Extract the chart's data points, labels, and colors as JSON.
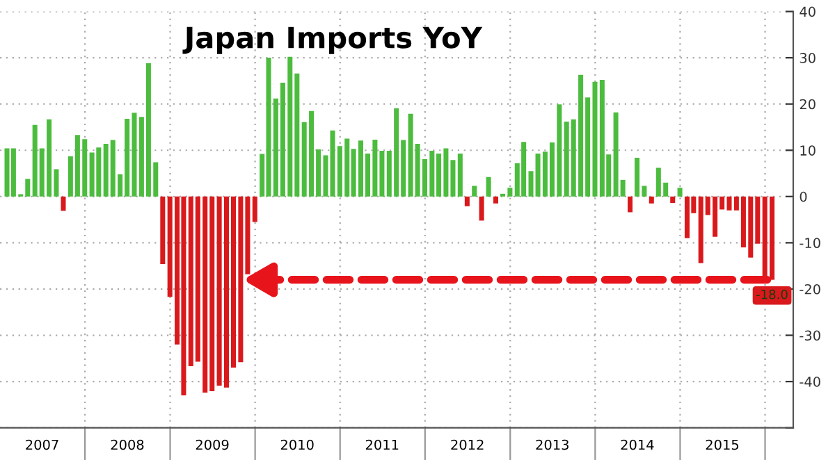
{
  "chart_data": {
    "type": "bar",
    "title": "Japan Imports YoY",
    "x": [
      "2007-01-31",
      "2007-02-28",
      "2007-03-31",
      "2007-04-30",
      "2007-05-31",
      "2007-06-30",
      "2007-07-31",
      "2007-08-31",
      "2007-09-30",
      "2007-10-31",
      "2007-11-30",
      "2007-12-31",
      "2008-01-31",
      "2008-02-29",
      "2008-03-31",
      "2008-04-30",
      "2008-05-31",
      "2008-06-30",
      "2008-07-31",
      "2008-08-31",
      "2008-09-30",
      "2008-10-31",
      "2008-11-30",
      "2008-12-31",
      "2009-01-31",
      "2009-02-28",
      "2009-03-31",
      "2009-04-30",
      "2009-05-31",
      "2009-06-30",
      "2009-07-31",
      "2009-08-31",
      "2009-09-30",
      "2009-10-31",
      "2009-11-30",
      "2009-12-31",
      "2010-01-31",
      "2010-02-28",
      "2010-03-31",
      "2010-04-30",
      "2010-05-31",
      "2010-06-30",
      "2010-07-31",
      "2010-08-31",
      "2010-09-30",
      "2010-10-31",
      "2010-11-30",
      "2010-12-31",
      "2011-01-31",
      "2011-02-28",
      "2011-03-31",
      "2011-04-30",
      "2011-05-31",
      "2011-06-30",
      "2011-07-31",
      "2011-08-31",
      "2011-09-30",
      "2011-10-31",
      "2011-11-30",
      "2011-12-31",
      "2012-01-31",
      "2012-02-29",
      "2012-03-31",
      "2012-04-30",
      "2012-05-31",
      "2012-06-30",
      "2012-07-31",
      "2012-08-31",
      "2012-09-30",
      "2012-10-31",
      "2012-11-30",
      "2012-12-31",
      "2013-01-31",
      "2013-02-28",
      "2013-03-31",
      "2013-04-30",
      "2013-05-31",
      "2013-06-30",
      "2013-07-31",
      "2013-08-31",
      "2013-09-30",
      "2013-10-31",
      "2013-11-30",
      "2013-12-31",
      "2014-01-31",
      "2014-02-28",
      "2014-03-31",
      "2014-04-30",
      "2014-05-31",
      "2014-06-30",
      "2014-07-31",
      "2014-08-31",
      "2014-09-30",
      "2014-10-31",
      "2014-11-30",
      "2014-12-31",
      "2015-01-31",
      "2015-02-28",
      "2015-03-31",
      "2015-04-30",
      "2015-05-31",
      "2015-06-30",
      "2015-07-31",
      "2015-08-31",
      "2015-09-30",
      "2015-10-31",
      "2015-11-30",
      "2015-12-31",
      "2016-01-31"
    ],
    "values": [
      10.4,
      10.4,
      0.5,
      3.8,
      15.5,
      10.4,
      16.7,
      5.9,
      -3.1,
      8.7,
      13.3,
      12.4,
      9.5,
      10.6,
      11.4,
      12.2,
      4.8,
      16.8,
      18.1,
      17.2,
      28.8,
      7.4,
      -14.6,
      -21.7,
      -32.0,
      -43.0,
      -36.7,
      -35.7,
      -42.4,
      -42.1,
      -40.9,
      -41.3,
      -37.0,
      -35.8,
      -16.8,
      -5.5,
      9.2,
      30.0,
      21.2,
      24.6,
      30.2,
      26.6,
      16.1,
      18.5,
      10.2,
      8.9,
      14.3,
      10.9,
      12.5,
      10.3,
      12.1,
      9.3,
      12.3,
      9.9,
      9.9,
      19.1,
      12.2,
      17.9,
      11.4,
      8.1,
      9.9,
      9.3,
      10.4,
      7.9,
      9.3,
      -2.1,
      2.3,
      -5.2,
      4.2,
      -1.5,
      0.6,
      1.9,
      7.2,
      11.8,
      5.5,
      9.3,
      9.7,
      11.7,
      19.9,
      16.2,
      16.7,
      26.3,
      21.4,
      24.8,
      25.2,
      9.1,
      18.2,
      3.6,
      -3.4,
      8.4,
      2.3,
      -1.5,
      6.2,
      3.0,
      -1.4,
      1.9,
      -9.0,
      -3.6,
      -14.4,
      -4.0,
      -8.7,
      -2.8,
      -3.0,
      -3.0,
      -11.0,
      -13.2,
      -10.2,
      -18.0,
      -18.0
    ],
    "value_labels": [
      null,
      null,
      null,
      null,
      null,
      null,
      null,
      null,
      null,
      null,
      null,
      null,
      null,
      null,
      null,
      null,
      null,
      null,
      null,
      null,
      null,
      null,
      null,
      null,
      null,
      null,
      null,
      null,
      null,
      null,
      null,
      null,
      null,
      null,
      null,
      null,
      null,
      null,
      null,
      null,
      null,
      null,
      null,
      null,
      null,
      null,
      null,
      null,
      null,
      null,
      null,
      null,
      null,
      null,
      null,
      null,
      null,
      null,
      null,
      null,
      null,
      null,
      null,
      null,
      null,
      null,
      null,
      null,
      null,
      null,
      null,
      null,
      null,
      null,
      null,
      null,
      null,
      null,
      null,
      null,
      null,
      null,
      null,
      null,
      null,
      null,
      null,
      null,
      null,
      null,
      null,
      null,
      null,
      null,
      null,
      null,
      null,
      null,
      null,
      null,
      null,
      null,
      null,
      null,
      null,
      null,
      null,
      null,
      "-18.0"
    ],
    "colors": [
      "#4cbc3e",
      "#4cbc3e",
      "#4cbc3e",
      "#4cbc3e",
      "#4cbc3e",
      "#4cbc3e",
      "#4cbc3e",
      "#4cbc3e",
      "#d9191c",
      "#4cbc3e",
      "#4cbc3e",
      "#4cbc3e",
      "#4cbc3e",
      "#4cbc3e",
      "#4cbc3e",
      "#4cbc3e",
      "#4cbc3e",
      "#4cbc3e",
      "#4cbc3e",
      "#4cbc3e",
      "#4cbc3e",
      "#4cbc3e",
      "#d9191c",
      "#d9191c",
      "#d9191c",
      "#d9191c",
      "#d9191c",
      "#d9191c",
      "#d9191c",
      "#d9191c",
      "#d9191c",
      "#d9191c",
      "#d9191c",
      "#d9191c",
      "#d9191c",
      "#d9191c",
      "#4cbc3e",
      "#4cbc3e",
      "#4cbc3e",
      "#4cbc3e",
      "#4cbc3e",
      "#4cbc3e",
      "#4cbc3e",
      "#4cbc3e",
      "#4cbc3e",
      "#4cbc3e",
      "#4cbc3e",
      "#4cbc3e",
      "#4cbc3e",
      "#4cbc3e",
      "#4cbc3e",
      "#4cbc3e",
      "#4cbc3e",
      "#4cbc3e",
      "#4cbc3e",
      "#4cbc3e",
      "#4cbc3e",
      "#4cbc3e",
      "#4cbc3e",
      "#4cbc3e",
      "#4cbc3e",
      "#4cbc3e",
      "#4cbc3e",
      "#4cbc3e",
      "#4cbc3e",
      "#d9191c",
      "#4cbc3e",
      "#d9191c",
      "#4cbc3e",
      "#d9191c",
      "#4cbc3e",
      "#4cbc3e",
      "#4cbc3e",
      "#4cbc3e",
      "#4cbc3e",
      "#4cbc3e",
      "#4cbc3e",
      "#4cbc3e",
      "#4cbc3e",
      "#4cbc3e",
      "#4cbc3e",
      "#4cbc3e",
      "#4cbc3e",
      "#4cbc3e",
      "#4cbc3e",
      "#4cbc3e",
      "#4cbc3e",
      "#4cbc3e",
      "#d9191c",
      "#4cbc3e",
      "#4cbc3e",
      "#d9191c",
      "#4cbc3e",
      "#4cbc3e",
      "#d9191c",
      "#4cbc3e",
      "#d9191c",
      "#d9191c",
      "#d9191c",
      "#d9191c",
      "#d9191c",
      "#d9191c",
      "#d9191c",
      "#d9191c",
      "#d9191c",
      "#d9191c",
      "#d9191c",
      "#d9191c",
      "#d9191c"
    ],
    "xlim": [
      "2007-01-01",
      "2016-05-01"
    ],
    "xticks": [
      {
        "value": "2007-07-01",
        "label": "2007"
      },
      {
        "value": "2008-01-01",
        "label": null
      },
      {
        "value": "2008-07-01",
        "label": "2008"
      },
      {
        "value": "2009-01-01",
        "label": null
      },
      {
        "value": "2009-07-01",
        "label": "2009"
      },
      {
        "value": "2010-01-01",
        "label": null
      },
      {
        "value": "2010-07-01",
        "label": "2010"
      },
      {
        "value": "2011-01-01",
        "label": null
      },
      {
        "value": "2011-07-01",
        "label": "2011"
      },
      {
        "value": "2012-01-01",
        "label": null
      },
      {
        "value": "2012-07-01",
        "label": "2012"
      },
      {
        "value": "2013-01-01",
        "label": null
      },
      {
        "value": "2013-07-01",
        "label": "2013"
      },
      {
        "value": "2014-01-01",
        "label": null
      },
      {
        "value": "2014-07-01",
        "label": "2014"
      },
      {
        "value": "2015-01-01",
        "label": null
      },
      {
        "value": "2015-07-01",
        "label": "2015"
      },
      {
        "value": "2016-01-01",
        "label": null
      }
    ],
    "ylim": [
      -50,
      40
    ],
    "yticks": [
      {
        "value": -50,
        "label": null
      },
      -40,
      -30,
      -20,
      -10,
      0,
      10,
      20,
      30,
      40
    ],
    "ref_lines": [
      {
        "axis": "y",
        "value": -18,
        "color": "#e8141b",
        "line_style": "dashed"
      }
    ],
    "grid": true
  }
}
